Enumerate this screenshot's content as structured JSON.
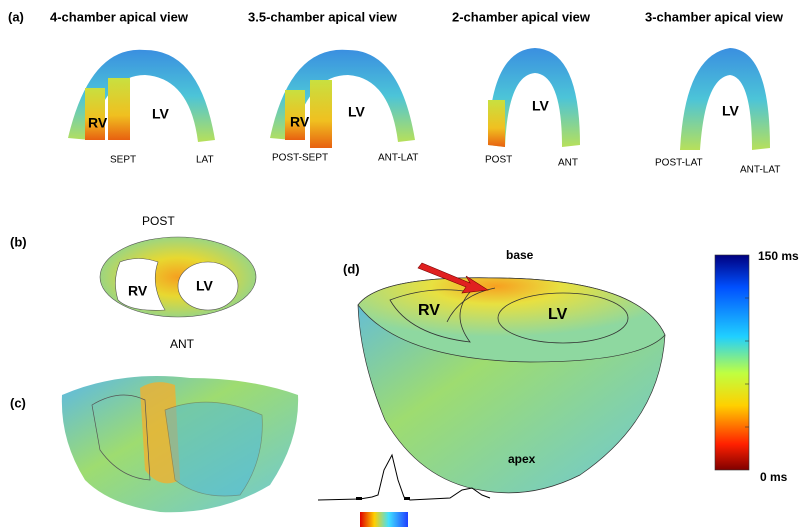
{
  "panel_a": {
    "label": "(a)",
    "views": [
      {
        "title": "4-chamber apical view",
        "labels": [
          "RV",
          "LV",
          "SEPT",
          "LAT"
        ]
      },
      {
        "title": "3.5-chamber apical view",
        "labels": [
          "RV",
          "LV",
          "POST-SEPT",
          "ANT-LAT"
        ]
      },
      {
        "title": "2-chamber apical view",
        "labels": [
          "LV",
          "POST",
          "ANT"
        ]
      },
      {
        "title": "3-chamber apical view",
        "labels": [
          "LV",
          "POST-LAT",
          "ANT-LAT"
        ]
      }
    ]
  },
  "panel_b": {
    "label": "(b)",
    "top": "POST",
    "rv": "RV",
    "lv": "LV",
    "bottom": "ANT"
  },
  "panel_c": {
    "label": "(c)"
  },
  "panel_d": {
    "label": "(d)",
    "base": "base",
    "rv": "RV",
    "lv": "LV",
    "apex": "apex"
  },
  "colorbar": {
    "max_label": "150 ms",
    "min_label": "0 ms"
  }
}
